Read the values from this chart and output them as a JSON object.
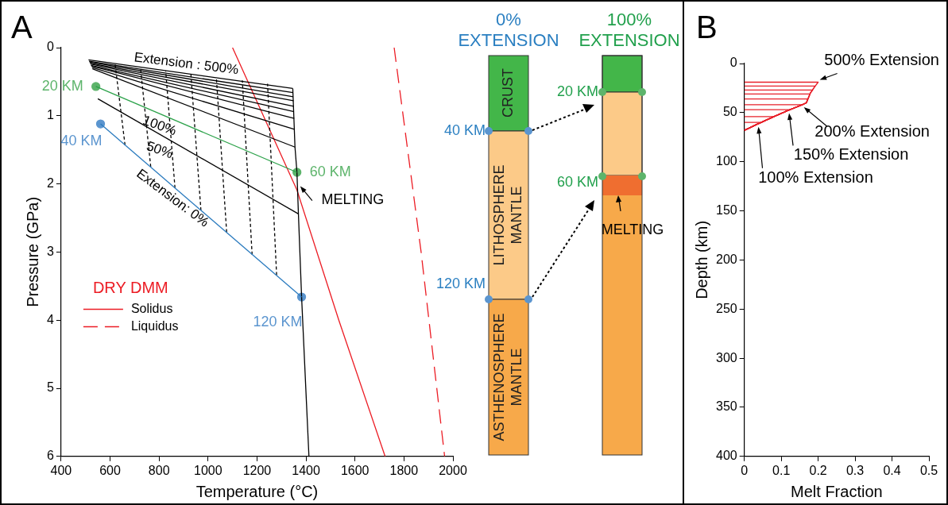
{
  "chart_data": [
    {
      "type": "line",
      "title": "A",
      "xlabel": "Temperature (°C)",
      "ylabel": "Pressure (GPa)",
      "xlim": [
        400,
        2000
      ],
      "xticks": [
        400,
        600,
        800,
        1000,
        1200,
        1400,
        1600,
        1800,
        2000
      ],
      "ylim": [
        6,
        0
      ],
      "yticks": [
        0,
        1,
        2,
        3,
        4,
        5,
        6
      ],
      "grid": false,
      "legend": "left",
      "legend_title": "DRY DMM",
      "marker": "none",
      "series": [
        {
          "color": "#000000",
          "x": [
            512,
            1346
          ],
          "values": [
            0.18,
            0.6
          ]
        },
        {
          "color": "#000000",
          "x": [
            514,
            1347
          ],
          "values": [
            0.2,
            0.66
          ]
        },
        {
          "color": "#000000",
          "x": [
            516,
            1348
          ],
          "values": [
            0.21,
            0.72
          ]
        },
        {
          "color": "#000000",
          "x": [
            518,
            1349
          ],
          "values": [
            0.23,
            0.78
          ]
        },
        {
          "color": "#000000",
          "x": [
            520,
            1350
          ],
          "values": [
            0.24,
            0.86
          ]
        },
        {
          "color": "#000000",
          "x": [
            522,
            1351
          ],
          "values": [
            0.26,
            0.94
          ]
        },
        {
          "color": "#000000",
          "x": [
            524,
            1352
          ],
          "values": [
            0.27,
            1.04
          ]
        },
        {
          "color": "#000000",
          "x": [
            526,
            1353
          ],
          "values": [
            0.29,
            1.2
          ]
        },
        {
          "color": "#000000",
          "x": [
            528,
            1355
          ],
          "values": [
            0.31,
            1.46
          ]
        },
        {
          "color": "#2ca24a",
          "x": [
            542,
            1363
          ],
          "values": [
            0.57,
            1.83
          ]
        },
        {
          "color": "#000000",
          "x": [
            550,
            1369
          ],
          "values": [
            0.75,
            2.44
          ]
        },
        {
          "color": "#2b7bbf",
          "x": [
            561,
            1382
          ],
          "values": [
            1.12,
            3.66
          ]
        },
        {
          "color": "#000000",
          "x": [
            1346,
            1355,
            1363,
            1369,
            1382,
            1412
          ],
          "values": [
            0.6,
            1.46,
            1.83,
            2.44,
            3.66,
            6
          ]
        },
        {
          "color": "#000000",
          "line_style": "dotted",
          "x": [
            661,
            620
          ],
          "values": [
            1.43,
            0.23
          ]
        },
        {
          "color": "#000000",
          "line_style": "dotted",
          "x": [
            766,
            724
          ],
          "values": [
            1.75,
            0.29
          ]
        },
        {
          "color": "#000000",
          "line_style": "dotted",
          "x": [
            865,
            827
          ],
          "values": [
            2.06,
            0.34
          ]
        },
        {
          "color": "#000000",
          "line_style": "dotted",
          "x": [
            971,
            930
          ],
          "values": [
            2.39,
            0.39
          ]
        },
        {
          "color": "#000000",
          "line_style": "dotted",
          "x": [
            1076,
            1034
          ],
          "values": [
            2.71,
            0.44
          ]
        },
        {
          "color": "#000000",
          "line_style": "dotted",
          "x": [
            1180,
            1140
          ],
          "values": [
            3.04,
            0.48
          ]
        },
        {
          "color": "#000000",
          "line_style": "dotted",
          "x": [
            1280,
            1243
          ],
          "values": [
            3.34,
            0.53
          ]
        },
        {
          "name": "Solidus",
          "color": "#ec1c24",
          "x": [
            1100,
            1363,
            1534,
            1723
          ],
          "values": [
            0,
            2.09,
            4,
            6
          ]
        },
        {
          "name": "Liquidus",
          "color": "#ec1c24",
          "line_style": "dashed",
          "x": [
            1760,
            1870,
            1966
          ],
          "values": [
            0,
            3,
            6
          ]
        },
        {
          "type": "scatter",
          "marker": "circle",
          "colors": [
            "#5db46b",
            "#5b95cf",
            "#5db46b",
            "#5b95cf"
          ],
          "x": [
            542,
            561,
            1363,
            1382
          ],
          "values": [
            0.57,
            1.12,
            1.83,
            3.66
          ]
        }
      ],
      "annotations": [
        {
          "text": "Extension : 500%",
          "x": 911,
          "y": 0.38
        },
        {
          "text": "100%",
          "x": 821,
          "y": 1.0
        },
        {
          "text": "50%",
          "x": 815,
          "y": 1.3
        },
        {
          "text": "Extension: 0%",
          "x": 861,
          "y": 2.05
        },
        {
          "text": "20 KM",
          "x": 542,
          "y": 0.57
        },
        {
          "text": "40 KM",
          "x": 561,
          "y": 1.12
        },
        {
          "text": "60 KM",
          "x": 1363,
          "y": 1.83
        },
        {
          "text": "120 KM",
          "x": 1382,
          "y": 3.66
        },
        {
          "text": "MELTING",
          "x": 1370,
          "y": 2.0
        }
      ]
    },
    {
      "type": "other",
      "annotations": [
        "0% EXTENSION",
        "100% EXTENSION",
        "CRUST",
        "LITHOSPHERE MANTLE",
        "ASTHENOSPHERE MANTLE",
        "40 KM",
        "120 KM",
        "20 KM",
        "60 KM",
        "MELTING"
      ]
    },
    {
      "type": "line",
      "title": "B",
      "xlabel": "Melt Fraction",
      "ylabel": "Depth (km)",
      "xlim": [
        0,
        0.5
      ],
      "xticks": [
        0,
        0.1,
        0.2,
        0.3,
        0.4,
        0.5
      ],
      "ylim": [
        400,
        0
      ],
      "yticks": [
        0,
        50,
        100,
        150,
        200,
        250,
        300,
        350,
        400
      ],
      "grid": false,
      "marker": "none",
      "series": [
        {
          "color": "#e8202a",
          "x": [
            0,
            0.034,
            0.045,
            0
          ],
          "values": [
            68,
            62,
            60,
            60
          ]
        },
        {
          "color": "#e8202a",
          "x": [
            0,
            0.034,
            0.08,
            0
          ],
          "values": [
            68,
            62,
            54,
            54
          ]
        },
        {
          "color": "#e8202a",
          "x": [
            0,
            0.034,
            0.08,
            0.117,
            0.124,
            0
          ],
          "values": [
            68,
            62,
            54,
            48,
            47,
            47
          ]
        },
        {
          "color": "#e8202a",
          "x": [
            0,
            0.034,
            0.08,
            0.117,
            0.157,
            0
          ],
          "values": [
            68,
            62,
            54,
            48,
            42,
            42
          ]
        },
        {
          "color": "#e8202a",
          "x": [
            0,
            0.034,
            0.08,
            0.117,
            0.157,
            0.168,
            0.172,
            0
          ],
          "values": [
            68,
            62,
            54,
            48,
            42,
            40,
            36,
            36
          ]
        },
        {
          "color": "#e8202a",
          "x": [
            0,
            0.034,
            0.08,
            0.117,
            0.157,
            0.168,
            0.178,
            0
          ],
          "values": [
            68,
            62,
            54,
            48,
            42,
            40,
            31,
            31
          ]
        },
        {
          "color": "#e8202a",
          "x": [
            0,
            0.034,
            0.08,
            0.117,
            0.157,
            0.168,
            0.179,
            0.185,
            0
          ],
          "values": [
            68,
            62,
            54,
            48,
            42,
            40,
            30,
            27,
            27
          ]
        },
        {
          "color": "#e8202a",
          "x": [
            0,
            0.034,
            0.08,
            0.117,
            0.157,
            0.168,
            0.179,
            0.19,
            0.192,
            0
          ],
          "values": [
            68,
            62,
            54,
            48,
            42,
            40,
            30,
            24,
            23,
            23
          ]
        },
        {
          "color": "#e8202a",
          "x": [
            0,
            0.034,
            0.08,
            0.117,
            0.157,
            0.168,
            0.179,
            0.19,
            0.2,
            0
          ],
          "values": [
            68,
            62,
            54,
            48,
            42,
            40,
            30,
            24,
            19,
            19
          ]
        }
      ],
      "annotations": [
        {
          "text": "500% Extension",
          "x": 0.2,
          "y": 19
        },
        {
          "text": "200% Extension",
          "x": 0.157,
          "y": 42
        },
        {
          "text": "150% Extension",
          "x": 0.117,
          "y": 48
        },
        {
          "text": "100% Extension",
          "x": 0.034,
          "y": 62
        }
      ]
    }
  ]
}
